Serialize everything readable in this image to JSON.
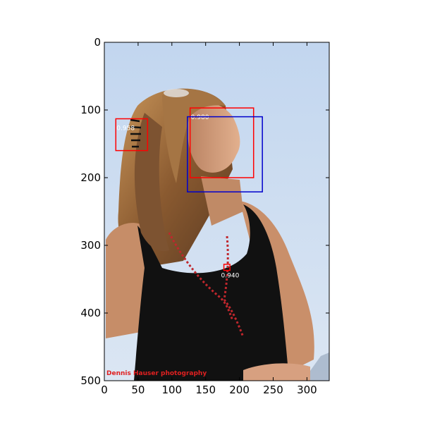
{
  "chart_data": {
    "type": "image-with-detections",
    "xlim": [
      0,
      333
    ],
    "ylim": [
      500,
      0
    ],
    "x_ticks": [
      0,
      50,
      100,
      150,
      200,
      250,
      300
    ],
    "y_ticks": [
      0,
      100,
      200,
      300,
      400,
      500
    ],
    "grid": false,
    "watermark": "Dennis Hauser photography",
    "boxes": [
      {
        "x0": 17,
        "y0": 113,
        "x1": 64,
        "y1": 160,
        "score": "0.958",
        "color": "#ff0000"
      },
      {
        "x0": 127,
        "y0": 97,
        "x1": 221,
        "y1": 200,
        "score": "0.980",
        "color": "#ff0000"
      },
      {
        "x0": 123,
        "y0": 110,
        "x1": 234,
        "y1": 221,
        "score": "",
        "color": "#0000cc"
      },
      {
        "x0": 177,
        "y0": 328,
        "x1": 186,
        "y1": 337,
        "score": "0.940",
        "color": "#ff0000"
      }
    ],
    "colors": {
      "sky_top": "#c2d6ef",
      "sky_bottom": "#dbe6f3",
      "hair": "#9b6b3a",
      "skin": "#d9a27e",
      "top": "#111111",
      "necklace": "#c0272d"
    }
  }
}
